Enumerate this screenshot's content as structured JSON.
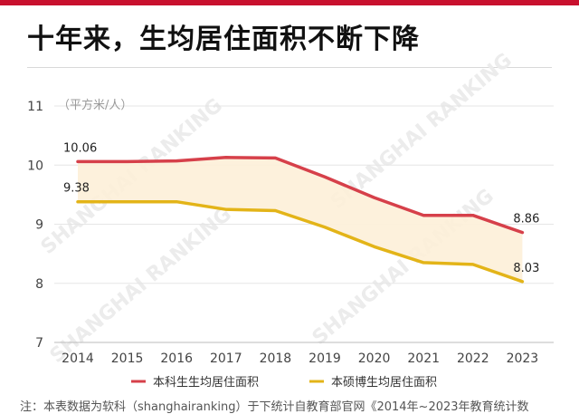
{
  "title": "十年来，生均居住面积不断下降",
  "footnote": "注：本表数据为软科（shanghairanking）于下统计自教育部官网《2014年~2023年教育统计数",
  "watermark": "SHANGHAI RANKING",
  "colors": {
    "undergrad": "#d6404a",
    "postgrad": "#e3b418",
    "band": "#fdf0d8",
    "accent": "#c8102e"
  },
  "chart_data": {
    "type": "line",
    "x": [
      2014,
      2015,
      2016,
      2017,
      2018,
      2019,
      2020,
      2021,
      2022,
      2023
    ],
    "xlabel": "",
    "ylabel": "（平方米/人）",
    "ylim": [
      7,
      11
    ],
    "yticks": [
      7,
      8,
      9,
      10,
      11
    ],
    "grid": true,
    "legend_position": "bottom",
    "series": [
      {
        "name": "本科生生均居住面积",
        "color": "#d6404a",
        "values": [
          10.06,
          10.06,
          10.07,
          10.13,
          10.12,
          9.8,
          9.45,
          9.15,
          9.15,
          8.86
        ]
      },
      {
        "name": "本硕博生均居住面积",
        "color": "#e3b418",
        "values": [
          9.38,
          9.38,
          9.38,
          9.25,
          9.23,
          8.95,
          8.62,
          8.35,
          8.32,
          8.03
        ]
      }
    ],
    "data_labels": [
      {
        "series": 0,
        "index": 0,
        "text": "10.06"
      },
      {
        "series": 1,
        "index": 0,
        "text": "9.38"
      },
      {
        "series": 0,
        "index": 9,
        "text": "8.86"
      },
      {
        "series": 1,
        "index": 9,
        "text": "8.03"
      }
    ]
  }
}
